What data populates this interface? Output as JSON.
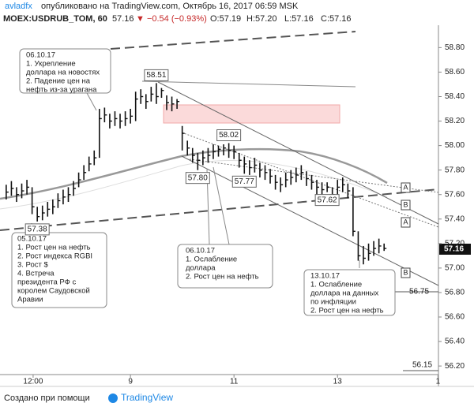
{
  "header": {
    "author": "avladfx",
    "published": "опубликовано на TradingView.com, Октябрь 16, 2017 06:59 MSK",
    "symbol": "MOEX:USDRUB_TOM, 60",
    "last": "57.16",
    "change": "▼ −0.54 (−0.93%)",
    "open": "O:57.19",
    "high": "H:57.20",
    "low": "L:57.16",
    "close": "C:57.16"
  },
  "chart_data": {
    "type": "ohlc",
    "x": [
      0,
      1,
      2,
      3,
      4,
      5,
      6,
      7,
      8,
      9,
      10,
      11,
      12,
      13,
      14,
      15,
      16,
      17,
      18,
      19,
      20,
      21,
      22,
      23,
      24,
      25,
      26,
      27,
      28,
      29,
      30,
      31,
      32,
      33,
      34,
      35,
      36,
      37,
      38,
      39,
      40,
      41,
      42,
      43,
      44,
      45,
      46,
      47,
      48,
      49,
      50,
      51,
      52,
      53,
      54,
      55,
      56,
      57,
      58,
      59,
      60,
      61,
      62,
      63,
      64,
      65,
      66,
      67,
      68,
      69,
      70,
      71,
      72,
      73
    ],
    "high": [
      57.68,
      57.71,
      57.66,
      57.69,
      57.72,
      57.66,
      57.5,
      57.51,
      57.54,
      57.56,
      57.61,
      57.64,
      57.66,
      57.71,
      57.78,
      57.84,
      57.91,
      57.96,
      58.3,
      58.31,
      58.26,
      58.28,
      58.26,
      58.28,
      58.3,
      58.44,
      58.46,
      58.42,
      58.48,
      58.51,
      58.47,
      58.41,
      58.4,
      58.38,
      58.16,
      58.04,
      57.98,
      57.94,
      57.96,
      57.98,
      58.01,
      58.0,
      58.01,
      58.02,
      58.0,
      57.94,
      57.91,
      57.88,
      57.9,
      57.86,
      57.84,
      57.81,
      57.76,
      57.74,
      57.78,
      57.8,
      57.82,
      57.84,
      57.79,
      57.76,
      57.72,
      57.7,
      57.7,
      57.66,
      57.72,
      57.74,
      57.69,
      57.66,
      57.3,
      57.18,
      57.2,
      57.22,
      57.24,
      57.2
    ],
    "low": [
      57.56,
      57.59,
      57.54,
      57.57,
      57.6,
      57.44,
      57.38,
      57.39,
      57.42,
      57.44,
      57.49,
      57.52,
      57.54,
      57.59,
      57.66,
      57.72,
      57.79,
      57.84,
      57.9,
      58.19,
      58.14,
      58.16,
      58.14,
      58.16,
      58.18,
      58.2,
      58.34,
      58.3,
      58.36,
      58.34,
      58.39,
      58.29,
      58.28,
      58.3,
      57.96,
      57.92,
      57.86,
      57.8,
      57.84,
      57.86,
      57.89,
      57.91,
      57.92,
      57.9,
      57.89,
      57.82,
      57.77,
      57.76,
      57.78,
      57.74,
      57.72,
      57.69,
      57.64,
      57.62,
      57.66,
      57.68,
      57.7,
      57.72,
      57.67,
      57.64,
      57.6,
      57.58,
      57.62,
      57.54,
      57.6,
      57.62,
      57.57,
      57.26,
      57.06,
      57.03,
      57.06,
      57.1,
      57.12,
      57.14
    ],
    "close": [
      57.62,
      57.65,
      57.6,
      57.63,
      57.66,
      57.5,
      57.42,
      57.45,
      57.48,
      57.5,
      57.55,
      57.58,
      57.6,
      57.65,
      57.72,
      57.78,
      57.85,
      57.9,
      58.22,
      58.25,
      58.2,
      58.22,
      58.2,
      58.22,
      58.24,
      58.38,
      58.4,
      58.36,
      58.42,
      58.4,
      58.45,
      58.35,
      58.34,
      58.36,
      58.1,
      57.98,
      57.92,
      57.88,
      57.9,
      57.92,
      57.95,
      57.97,
      57.98,
      57.96,
      57.95,
      57.88,
      57.85,
      57.82,
      57.84,
      57.8,
      57.78,
      57.75,
      57.7,
      57.68,
      57.72,
      57.74,
      57.76,
      57.78,
      57.73,
      57.7,
      57.66,
      57.64,
      57.66,
      57.6,
      57.66,
      57.68,
      57.63,
      57.3,
      57.1,
      57.08,
      57.12,
      57.16,
      57.18,
      57.16
    ],
    "xlim": [
      -1.2,
      83.5
    ],
    "ylim": [
      56.13,
      59.06
    ],
    "xticks": [
      {
        "value": 5.2,
        "label": "12:00"
      },
      {
        "value": 24,
        "label": "9"
      },
      {
        "value": 44,
        "label": "11"
      },
      {
        "value": 64,
        "label": "13"
      },
      {
        "value": 83.4,
        "label": "1"
      }
    ],
    "yticks": [
      {
        "value": 56.2,
        "label": "56.20"
      },
      {
        "value": 56.4,
        "label": "56.40"
      },
      {
        "value": 56.6,
        "label": "56.60"
      },
      {
        "value": 56.8,
        "label": "56.80"
      },
      {
        "value": 57,
        "label": "57.00"
      },
      {
        "value": 57.2,
        "label": "57.20"
      },
      {
        "value": 57.4,
        "label": "57.40"
      },
      {
        "value": 57.6,
        "label": "57.60"
      },
      {
        "value": 57.8,
        "label": "57.80"
      },
      {
        "value": 58,
        "label": "58.00"
      },
      {
        "value": 58.2,
        "label": "58.20"
      },
      {
        "value": 58.4,
        "label": "58.40"
      },
      {
        "value": 58.6,
        "label": "58.60"
      },
      {
        "value": 58.8,
        "label": "58.80"
      }
    ],
    "price_labels": [
      {
        "x": 29,
        "value": "58.51"
      },
      {
        "x": 43,
        "value": "58.02"
      },
      {
        "x": 37,
        "value": "57.80"
      },
      {
        "x": 46,
        "value": "57.77"
      },
      {
        "x": 62,
        "value": "57.62"
      },
      {
        "x": 6,
        "value": "57.38"
      }
    ],
    "level_labels": [
      "56.75",
      "56.15"
    ],
    "last_price": "57.16",
    "channel_labels": [
      "A",
      "B",
      "A",
      "B"
    ],
    "annotations": [
      {
        "lines": [
          "06.10.17",
          "1. Укрепление",
          "доллара на новостях",
          "2. Падение цен на",
          "нефть из-за урагана"
        ]
      },
      {
        "lines": [
          "05.10.17",
          "1. Рост цен на нефть",
          "2. Рост индекса RGBI",
          "3. Рост $",
          "4. Встреча",
          "президента РФ с",
          "королем Саудовской",
          "Аравии"
        ]
      },
      {
        "lines": [
          "06.10.17",
          "1. Ослабление",
          "доллара",
          "2. Рост цен на нефть"
        ]
      },
      {
        "lines": [
          "13.10.17",
          "1. Ослабление",
          "доллара на данных",
          "по инфляции",
          "2. Рост цен на нефть"
        ]
      }
    ]
  },
  "footer": {
    "made_with": "Создано при помощи",
    "brand": "TradingView"
  }
}
